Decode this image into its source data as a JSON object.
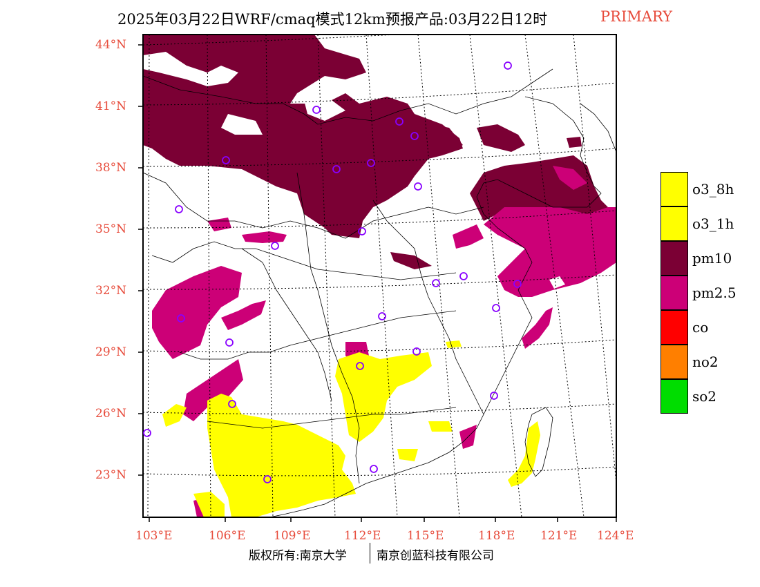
{
  "title": "2025年03月22日WRF/cmaq模式12km预报产品:03月22日12时",
  "title_tag": "PRIMARY",
  "colors": {
    "o3_8h": "#ffff00",
    "o3_1h": "#ffff00",
    "pm10": "#7b0034",
    "pm25": "#cc0077",
    "co": "#ff0000",
    "no2": "#ff7f00",
    "so2": "#00dd00",
    "station": "#8800ff",
    "tick_label": "#e74c3c"
  },
  "lat_labels": [
    "44°N",
    "41°N",
    "38°N",
    "35°N",
    "32°N",
    "29°N",
    "26°N",
    "23°N"
  ],
  "lon_labels": [
    "103°E",
    "106°E",
    "109°E",
    "112°E",
    "115°E",
    "118°E",
    "121°E",
    "124°E"
  ],
  "legend": [
    {
      "key": "o3_8h",
      "label": "o3_8h"
    },
    {
      "key": "o3_1h",
      "label": "o3_1h"
    },
    {
      "key": "pm10",
      "label": "pm10"
    },
    {
      "key": "pm25",
      "label": "pm2.5"
    },
    {
      "key": "co",
      "label": "co"
    },
    {
      "key": "no2",
      "label": "no2"
    },
    {
      "key": "so2",
      "label": "so2"
    }
  ],
  "footer_left": "版权所有:南京大学",
  "footer_right": "南京创蓝科技有限公司"
}
